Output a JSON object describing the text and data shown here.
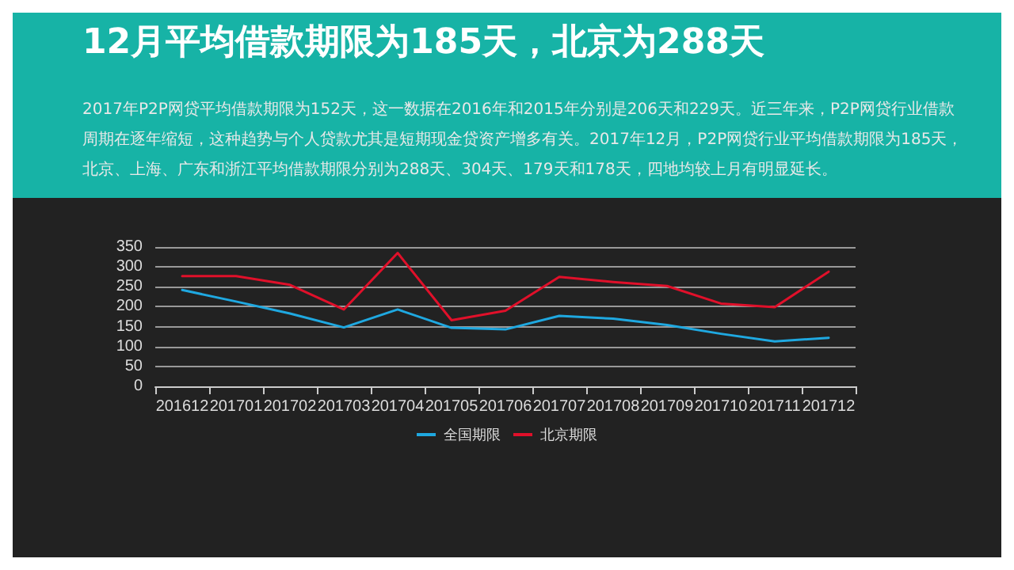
{
  "chart_data": {
    "type": "line",
    "title": "12月平均借款期限为185天，北京为288天",
    "subtitle": "2017年P2P网贷平均借款期限为152天，这一数据在2016年和2015年分别是206天和229天。近三年来，P2P网贷行业借款周期在逐年缩短，这种趋势与个人贷款尤其是短期现金贷资产增多有关。2017年12月，P2P网贷行业平均借款期限为185天，北京、上海、广东和浙江平均借款期限分别为288天、304天、179天和178天，四地均较上月有明显延长。",
    "categories": [
      "201612",
      "201701",
      "201702",
      "201703",
      "201704",
      "201705",
      "201706",
      "201707",
      "201708",
      "201709",
      "201710",
      "201711",
      "201712"
    ],
    "series": [
      {
        "name": "全国期限",
        "color": "#1fa8e0",
        "values": [
          242,
          213,
          183,
          148,
          193,
          147,
          143,
          177,
          170,
          154,
          132,
          113,
          122
        ]
      },
      {
        "name": "北京期限",
        "color": "#e0102a",
        "values": [
          277,
          277,
          255,
          193,
          335,
          166,
          190,
          275,
          262,
          252,
          208,
          199,
          288
        ]
      }
    ],
    "ylim": [
      0,
      350
    ],
    "yticks": [
      0,
      50,
      100,
      150,
      200,
      250,
      300,
      350
    ],
    "grid": "y",
    "legend": "bottom",
    "marker": "none",
    "line_style": "solid"
  }
}
